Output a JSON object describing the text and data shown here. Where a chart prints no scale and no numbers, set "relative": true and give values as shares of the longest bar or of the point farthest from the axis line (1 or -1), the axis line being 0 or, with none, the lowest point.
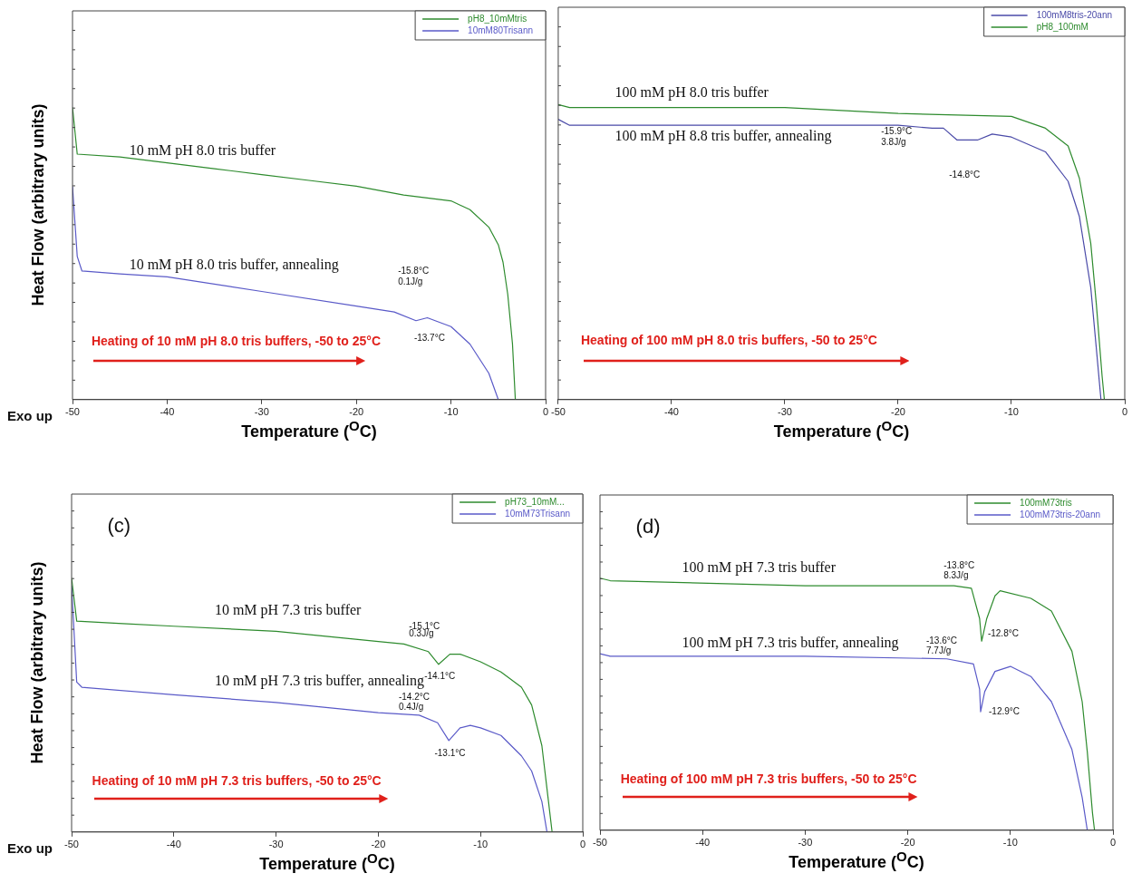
{
  "chart_data": [
    {
      "type": "line",
      "xlabel": "Temperature ($^{O}$C)",
      "ylabel": "Heat Flow (arbitrary units)",
      "relative": true,
      "xlim": [
        -50,
        0
      ],
      "xticks": [
        -50,
        -40,
        -30,
        -20,
        -10,
        0
      ],
      "legend": "top right",
      "grid": false,
      "marker": "none",
      "series": [
        {
          "name": "pH8_10mMtris",
          "color": "#2e8b2e",
          "x": [
            -50,
            -49.5,
            -45,
            -40,
            -35,
            -30,
            -25,
            -20,
            -15,
            -10,
            -8,
            -6,
            -5,
            -4.5,
            -4,
            -3.5,
            -3.2
          ],
          "values": [
            1,
            0.84,
            0.83,
            0.81,
            0.79,
            0.77,
            0.75,
            0.73,
            0.7,
            0.68,
            0.65,
            0.59,
            0.53,
            0.47,
            0.36,
            0.19,
            0
          ]
        },
        {
          "name": "10mM80Trisann",
          "color": "#5a5ac8",
          "x": [
            -50,
            -49.5,
            -49,
            -45,
            -40,
            -30,
            -20,
            -16,
            -13.7,
            -12.5,
            -10,
            -8,
            -6,
            -5
          ],
          "values": [
            0.73,
            0.49,
            0.44,
            0.43,
            0.42,
            0.37,
            0.32,
            0.3,
            0.27,
            0.28,
            0.25,
            0.19,
            0.09,
            0
          ]
        }
      ],
      "annotations": [
        "10 mM pH 8.0 tris buffer",
        "10 mM pH 8.0 tris buffer, annealing",
        "-15.8°C",
        "0.1J/g",
        "-13.7°C",
        "Heating of 10 mM pH 8.0 tris buffers, -50 to 25°C",
        "Exo up"
      ]
    },
    {
      "type": "line",
      "xlabel": "Temperature ($^{O}$C)",
      "relative": true,
      "xlim": [
        -50,
        0
      ],
      "xticks": [
        -50,
        -40,
        -30,
        -20,
        -10,
        0
      ],
      "legend": "top right",
      "grid": false,
      "marker": "none",
      "series": [
        {
          "name": "100mM8tris-20ann",
          "color": "#4a4aa8",
          "x": [
            -50,
            -49,
            -30,
            -20,
            -17,
            -16,
            -14.8,
            -13,
            -11.7,
            -10,
            -7,
            -5,
            -4,
            -3,
            -2.5,
            -2.1
          ],
          "values": [
            0.95,
            0.93,
            0.93,
            0.93,
            0.92,
            0.92,
            0.88,
            0.88,
            0.9,
            0.89,
            0.84,
            0.74,
            0.62,
            0.38,
            0.17,
            0
          ]
        },
        {
          "name": "pH8_100mM",
          "color": "#2e8b2e",
          "x": [
            -50,
            -49,
            -30,
            -20,
            -10,
            -7,
            -5,
            -4,
            -3,
            -2.5,
            -2,
            -1.8
          ],
          "values": [
            1,
            0.99,
            0.99,
            0.97,
            0.96,
            0.92,
            0.86,
            0.75,
            0.53,
            0.32,
            0.08,
            0
          ]
        }
      ],
      "annotations": [
        "100 mM pH 8.0 tris buffer",
        "100 mM pH 8.8 tris buffer, annealing",
        "-15.9°C",
        "3.8J/g",
        "-14.8°C",
        "Heating of 100 mM pH 8.0 tris buffers, -50 to 25°C"
      ]
    },
    {
      "type": "line",
      "title": "(c)",
      "xlabel": "Temperature ($^{O}$C)",
      "ylabel": "Heat Flow (arbitrary units)",
      "relative": true,
      "xlim": [
        -50,
        0
      ],
      "xticks": [
        -50,
        -40,
        -30,
        -20,
        -10,
        0
      ],
      "legend": "top right",
      "grid": false,
      "marker": "none",
      "series": [
        {
          "name": "pH73_10mM...",
          "color": "#2e8b2e",
          "x": [
            -50,
            -49.5,
            -45,
            -40,
            -30,
            -20,
            -17.5,
            -15.1,
            -14.1,
            -13,
            -12,
            -10,
            -8,
            -6,
            -5,
            -4,
            -3.5,
            -3
          ],
          "values": [
            1,
            0.83,
            0.82,
            0.81,
            0.79,
            0.75,
            0.74,
            0.71,
            0.66,
            0.7,
            0.7,
            0.67,
            0.63,
            0.57,
            0.5,
            0.34,
            0.17,
            0
          ]
        },
        {
          "name": "10mM73Trisann",
          "color": "#5a5ac8",
          "x": [
            -50,
            -49.5,
            -49,
            -40,
            -30,
            -20,
            -16,
            -14.2,
            -13.1,
            -12,
            -11,
            -10,
            -8,
            -6,
            -5,
            -4,
            -3.5
          ],
          "values": [
            0.97,
            0.59,
            0.57,
            0.54,
            0.51,
            0.47,
            0.46,
            0.43,
            0.36,
            0.41,
            0.42,
            0.41,
            0.38,
            0.3,
            0.24,
            0.12,
            0
          ]
        }
      ],
      "annotations": [
        "10 mM pH 7.3 tris buffer",
        "10 mM pH 7.3 tris buffer, annealing",
        "-15.1°C",
        "0.3J/g",
        "-14.1°C",
        "-14.2°C",
        "0.4J/g",
        "-13.1°C",
        "Heating of 10 mM pH 7.3 tris buffers, -50 to 25°C",
        "Exo up"
      ]
    },
    {
      "type": "line",
      "title": "(d)",
      "xlabel": "Temperature ($^{O}$C)",
      "relative": true,
      "xlim": [
        -50,
        0
      ],
      "xticks": [
        -50,
        -40,
        -30,
        -20,
        -10,
        0
      ],
      "legend": "top right",
      "grid": false,
      "marker": "none",
      "series": [
        {
          "name": "100mM73tris",
          "color": "#2e8b2e",
          "x": [
            -50,
            -49,
            -30,
            -16,
            -15.5,
            -13.8,
            -13,
            -12.8,
            -12.3,
            -11.5,
            -11,
            -8,
            -6,
            -4,
            -3,
            -2.5,
            -2,
            -1.8
          ],
          "values": [
            1,
            0.99,
            0.97,
            0.97,
            0.97,
            0.96,
            0.84,
            0.75,
            0.84,
            0.93,
            0.95,
            0.92,
            0.87,
            0.71,
            0.51,
            0.31,
            0.07,
            0
          ]
        },
        {
          "name": "100mM73tris-20ann",
          "color": "#5a5ac8",
          "x": [
            -50,
            -49,
            -30,
            -16.2,
            -13.6,
            -13,
            -12.9,
            -12.5,
            -11.5,
            -10,
            -8,
            -6,
            -4,
            -3,
            -2.5
          ],
          "values": [
            0.7,
            0.69,
            0.69,
            0.68,
            0.66,
            0.56,
            0.47,
            0.55,
            0.63,
            0.65,
            0.61,
            0.51,
            0.32,
            0.13,
            0
          ]
        }
      ],
      "annotations": [
        "100 mM pH 7.3 tris buffer",
        "100 mM pH 7.3 tris buffer, annealing",
        "-13.8°C",
        "8.3J/g",
        "-12.8°C",
        "-13.6°C",
        "7.7J/g",
        "-12.9°C",
        "Heating of 100 mM pH 7.3 tris buffers, -50 to 25°C"
      ]
    }
  ]
}
